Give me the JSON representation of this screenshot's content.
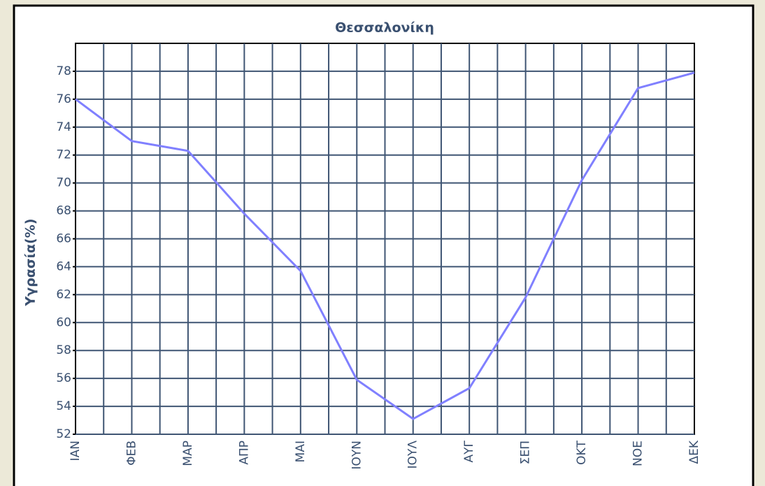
{
  "chart_data": {
    "type": "line",
    "title": "Θεσσαλονίκη",
    "ylabel": "Υγρασία(%)",
    "categories": [
      "ΙΑΝ",
      "ΦΕΒ",
      "ΜΑΡ",
      "ΑΠΡ",
      "ΜΑΙ",
      "ΙΟΥΝ",
      "ΙΟΥΛ",
      "ΑΥΓ",
      "ΣΕΠ",
      "ΟΚΤ",
      "ΝΟΕ",
      "ΔΕΚ"
    ],
    "values": [
      76,
      73,
      72.3,
      67.8,
      63.7,
      55.9,
      53.1,
      55.3,
      61.8,
      70.2,
      76.8,
      77.9
    ],
    "color": "#8080ff",
    "ylim": [
      52,
      80
    ],
    "yticks": [
      52,
      54,
      56,
      58,
      60,
      62,
      64,
      66,
      68,
      70,
      72,
      74,
      76,
      78
    ],
    "grid": true
  }
}
